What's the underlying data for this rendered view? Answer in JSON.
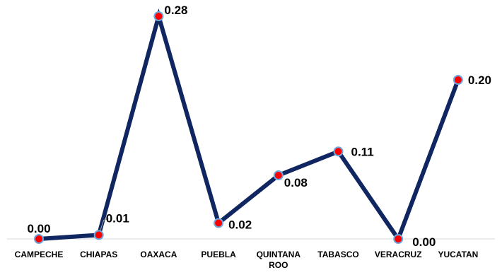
{
  "chart_data": {
    "type": "line",
    "title": "",
    "xlabel": "",
    "ylabel": "",
    "categories": [
      "CAMPECHE",
      "CHIAPAS",
      "OAXACA",
      "PUEBLA",
      "QUINTANA ROO",
      "TABASCO",
      "VERACRUZ",
      "YUCATAN"
    ],
    "series": [
      {
        "values": [
          0.0,
          0.005,
          0.28,
          0.02,
          0.08,
          0.11,
          0.0,
          0.2
        ],
        "data_labels": [
          "0.00",
          "0.01",
          "0.28",
          "0.02",
          "0.08",
          "0.11",
          "0.00",
          "0.20"
        ]
      }
    ],
    "ylim": [
      0,
      0.31
    ],
    "grid": false,
    "legend": "none",
    "colors": {
      "line": "#0f2660",
      "marker_fill": "#ff0000",
      "marker_edge": "#6fa8dc",
      "axis": "#d9d9d9"
    }
  }
}
